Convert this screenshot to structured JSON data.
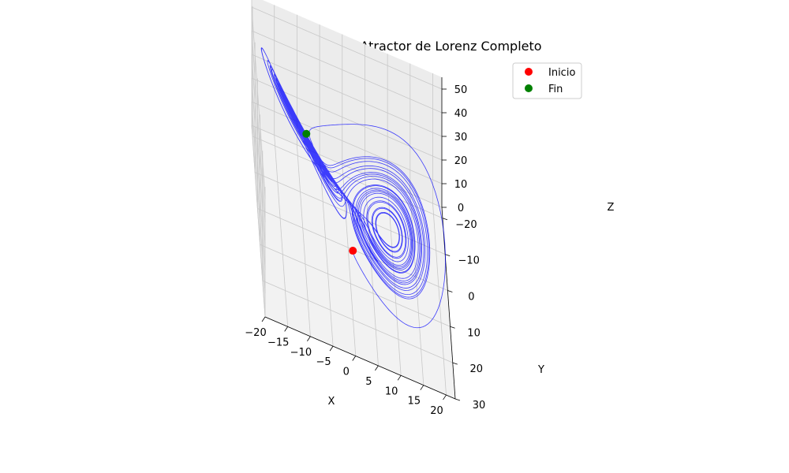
{
  "chart_data": {
    "type": "line",
    "projection": "3d",
    "title": "KAOS Cipher - Atractor de Lorenz Completo",
    "xlabel": "X",
    "ylabel": "Y",
    "zlabel": "Z",
    "xlim": [
      -20,
      22
    ],
    "ylim": [
      -23,
      30
    ],
    "zlim": [
      0,
      55
    ],
    "xticks": [
      -20,
      -15,
      -10,
      -5,
      0,
      5,
      10,
      15,
      20
    ],
    "yticks": [
      -20,
      -10,
      0,
      10,
      20,
      30
    ],
    "zticks": [
      0,
      10,
      20,
      30,
      40,
      50
    ],
    "grid": true,
    "legend": {
      "placement": "top-right",
      "entries": [
        {
          "label": "Inicio",
          "color": "#ff0000"
        },
        {
          "label": "Fin",
          "color": "#008000"
        }
      ]
    },
    "series": [
      {
        "kind": "trajectory",
        "color": "#0000ff",
        "system": "lorenz",
        "sigma": 10,
        "rho": 28,
        "beta": 2.6667
      }
    ],
    "points": [
      {
        "name": "Inicio",
        "x": 1,
        "y": 1,
        "z": 1,
        "color": "#ff0000"
      },
      {
        "name": "Fin",
        "x": -8.8,
        "y": -7.4,
        "z": 29.5,
        "color": "#008000"
      }
    ]
  }
}
